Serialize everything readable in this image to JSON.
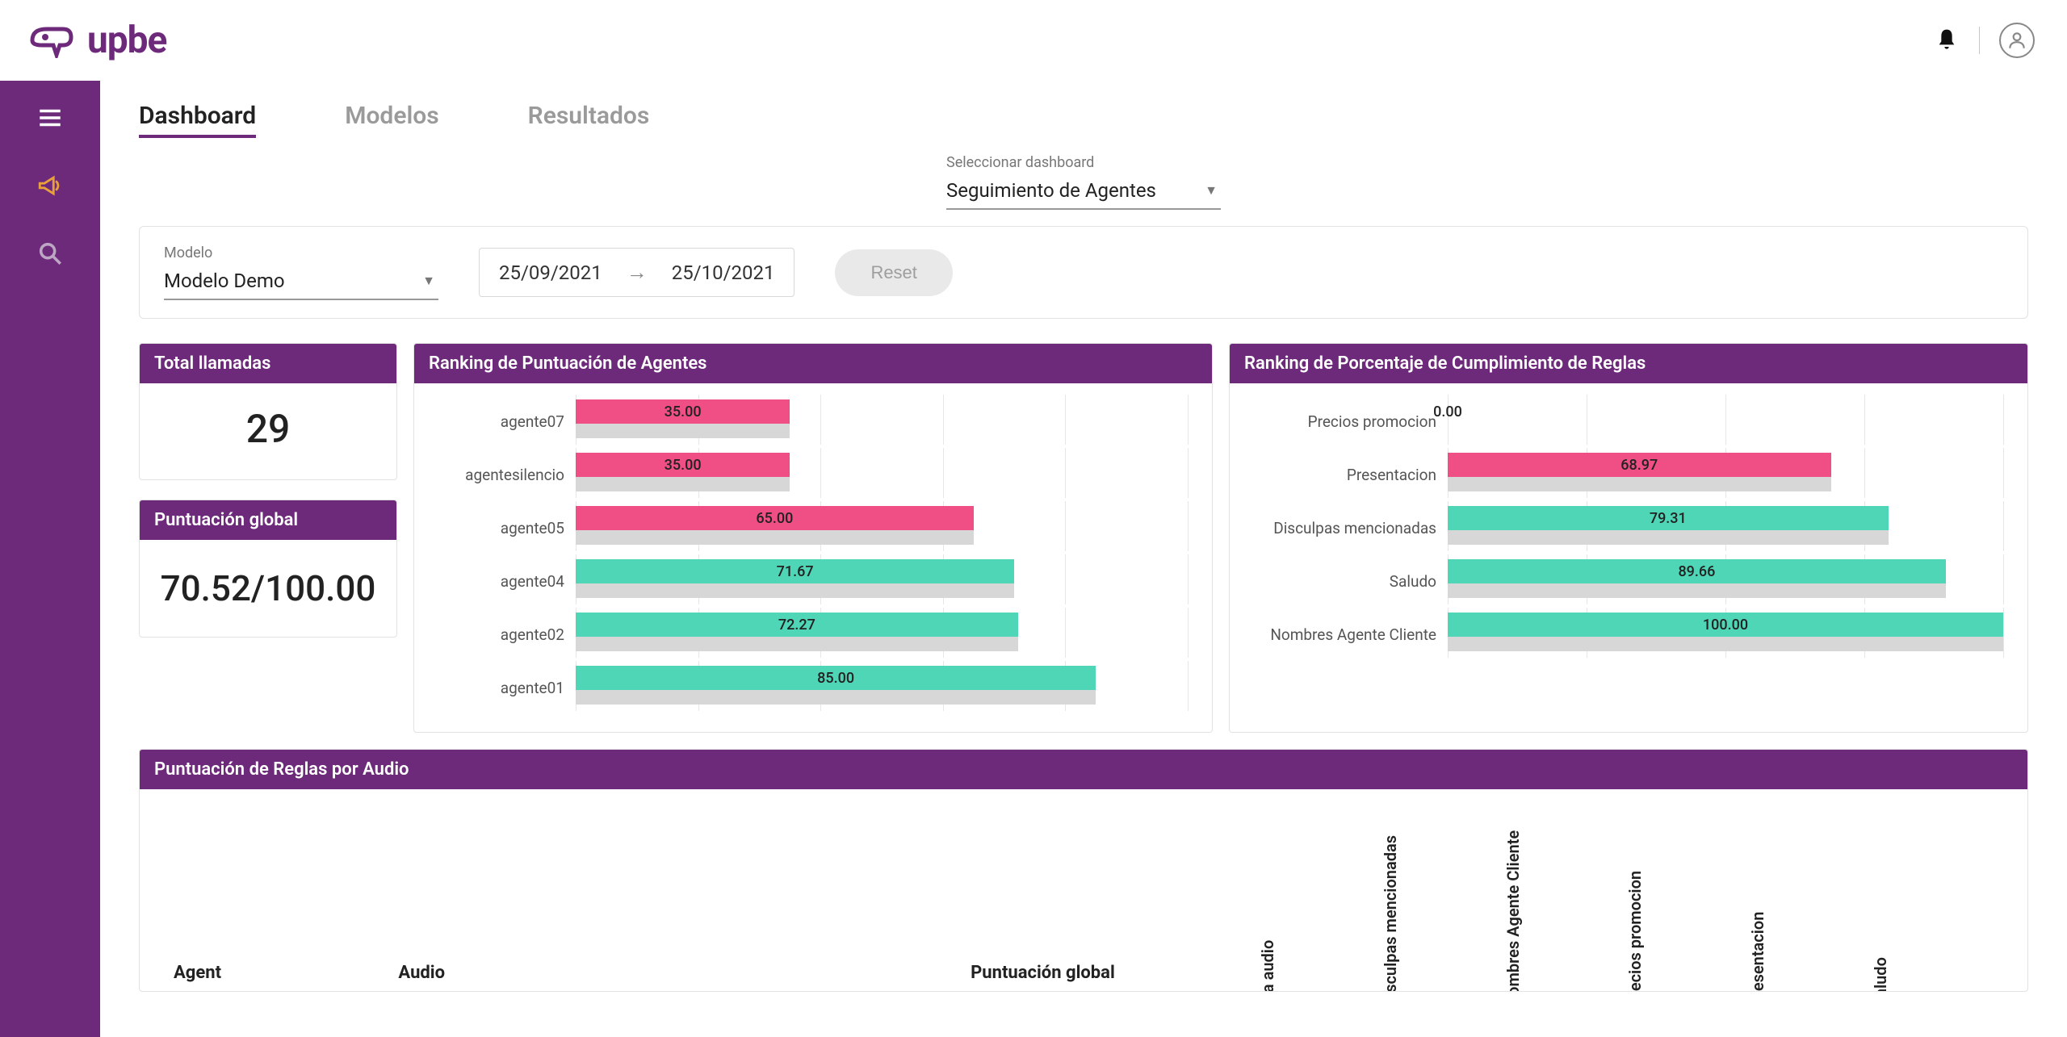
{
  "brand": {
    "name": "upbe",
    "color": "#6e2a7a"
  },
  "tabs": {
    "items": [
      "Dashboard",
      "Modelos",
      "Resultados"
    ],
    "active": 0
  },
  "dashboard_select": {
    "label": "Seleccionar dashboard",
    "value": "Seguimiento de Agentes"
  },
  "filters": {
    "model": {
      "label": "Modelo",
      "value": "Modelo Demo"
    },
    "date_from": "25/09/2021",
    "date_to": "25/10/2021",
    "reset_label": "Reset"
  },
  "kpi": {
    "total_calls": {
      "title": "Total llamadas",
      "value": "29"
    },
    "global_score": {
      "title": "Puntuación global",
      "value": "70.52/100.00"
    }
  },
  "agent_ranking": {
    "title": "Ranking de Puntuación de Agentes",
    "type": "bar",
    "max": 100,
    "threshold": 70,
    "colors": {
      "low": "#ef4f84",
      "high": "#4fd6b6",
      "shadow": "#d7d7d7"
    },
    "gridlines": [
      0,
      20,
      40,
      60,
      80,
      100
    ],
    "rows": [
      {
        "label": "agente07",
        "value": 35.0,
        "text": "35.00"
      },
      {
        "label": "agentesilencio",
        "value": 35.0,
        "text": "35.00"
      },
      {
        "label": "agente05",
        "value": 65.0,
        "text": "65.00"
      },
      {
        "label": "agente04",
        "value": 71.67,
        "text": "71.67"
      },
      {
        "label": "agente02",
        "value": 72.27,
        "text": "72.27"
      },
      {
        "label": "agente01",
        "value": 85.0,
        "text": "85.00"
      }
    ]
  },
  "rule_ranking": {
    "title": "Ranking de Porcentaje de Cumplimiento de Reglas",
    "type": "bar",
    "max": 100,
    "threshold": 70,
    "colors": {
      "low": "#ef4f84",
      "high": "#4fd6b6",
      "shadow": "#d7d7d7"
    },
    "gridlines": [
      0,
      25,
      50,
      75,
      100
    ],
    "rows": [
      {
        "label": "Precios promocion",
        "value": 0.0,
        "text": "0.00"
      },
      {
        "label": "Presentacion",
        "value": 68.97,
        "text": "68.97"
      },
      {
        "label": "Disculpas mencionadas",
        "value": 79.31,
        "text": "79.31"
      },
      {
        "label": "Saludo",
        "value": 89.66,
        "text": "89.66"
      },
      {
        "label": "Nombres Agente Cliente",
        "value": 100.0,
        "text": "100.00"
      }
    ]
  },
  "rules_by_audio": {
    "title": "Puntuación de Reglas por Audio",
    "columns": [
      "Agent",
      "Audio",
      "Puntuación global"
    ],
    "rotated_columns": [
      "Ir a audio",
      "Disculpas mencionadas",
      "Nombres Agente Cliente",
      "Precios promocion",
      "Presentacion",
      "Saludo"
    ]
  }
}
